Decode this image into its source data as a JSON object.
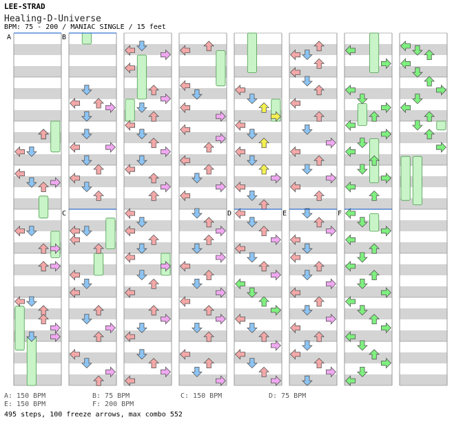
{
  "header": {
    "artist": "LEE-STRAD",
    "title": "Healing-D-Universe",
    "info": "BPM: 75 - 200 / MANIAC SINGLE / 15 feet"
  },
  "sections": [
    {
      "letter": "A",
      "column": 0,
      "beat": 0
    },
    {
      "letter": "B",
      "column": 1,
      "beat": 0
    },
    {
      "letter": "C",
      "column": 1,
      "beat": 4
    },
    {
      "letter": "D",
      "column": 4,
      "beat": 4
    },
    {
      "letter": "E",
      "column": 5,
      "beat": 4
    },
    {
      "letter": "F",
      "column": 6,
      "beat": 4
    }
  ],
  "bpm_list": [
    {
      "text": "A: 150 BPM"
    },
    {
      "text": "B: 75 BPM"
    },
    {
      "text": "C: 150 BPM"
    },
    {
      "text": "D: 75 BPM"
    },
    {
      "text": "E: 150 BPM"
    },
    {
      "text": "F: 200 BPM"
    }
  ],
  "summary": "495 steps, 100 freeze arrows, max combo 552",
  "colors": {
    "left": "#f4a8a8",
    "down": "#8cc4f4",
    "up": "#f4a8a8",
    "right": "#f0a8f0",
    "yellow": "#f4f050",
    "green": "#7ef07e",
    "freeze": "#c8f4c8",
    "stripe": "#d4d4d4",
    "outline": "#000000"
  },
  "freezes": [
    {
      "column": 0,
      "lane": 0,
      "start": 6.2,
      "end": 7.2
    },
    {
      "column": 0,
      "lane": 2,
      "start": 3.7,
      "end": 4.2
    },
    {
      "column": 0,
      "lane": 3,
      "start": 2.0,
      "end": 2.7
    },
    {
      "column": 0,
      "lane": 3,
      "start": 4.5,
      "end": 5.1
    },
    {
      "column": 0,
      "lane": 1,
      "start": 6.9,
      "end": 8.0
    },
    {
      "column": 1,
      "lane": 1,
      "start": 0.0,
      "end": 0.25
    },
    {
      "column": 1,
      "lane": 3,
      "start": 4.2,
      "end": 4.9
    },
    {
      "column": 1,
      "lane": 2,
      "start": 5.0,
      "end": 5.5
    },
    {
      "column": 2,
      "lane": 1,
      "start": 0.5,
      "end": 1.5
    },
    {
      "column": 2,
      "lane": 0,
      "start": 1.5,
      "end": 2.0
    },
    {
      "column": 2,
      "lane": 3,
      "start": 5.0,
      "end": 5.5
    },
    {
      "column": 3,
      "lane": 3,
      "start": 0.4,
      "end": 1.2
    },
    {
      "column": 4,
      "lane": 1,
      "start": 0.0,
      "end": 0.9
    },
    {
      "column": 4,
      "lane": 3,
      "start": 1.5,
      "end": 2.0
    },
    {
      "column": 6,
      "lane": 2,
      "start": 0.0,
      "end": 0.9
    },
    {
      "column": 6,
      "lane": 1,
      "start": 1.6,
      "end": 2.1
    },
    {
      "column": 6,
      "lane": 2,
      "start": 2.4,
      "end": 3.4
    },
    {
      "column": 6,
      "lane": 2,
      "start": 4.1,
      "end": 4.5
    },
    {
      "column": 7,
      "lane": 0,
      "start": 2.8,
      "end": 3.8
    },
    {
      "column": 7,
      "lane": 1,
      "start": 2.8,
      "end": 3.9
    },
    {
      "column": 7,
      "lane": 3,
      "start": 2.0,
      "end": 2.2
    }
  ],
  "arrows": [
    [
      0,
      2.2,
      2,
      "r"
    ],
    [
      0,
      2.2,
      2,
      "r"
    ],
    [
      0,
      2.6,
      0,
      "r"
    ],
    [
      0,
      2.6,
      1,
      "r"
    ],
    [
      0,
      3.1,
      0,
      "r"
    ],
    [
      0,
      3.3,
      1,
      "r"
    ],
    [
      0,
      3.3,
      3,
      "r"
    ],
    [
      0,
      3.4,
      2,
      "r"
    ],
    [
      0,
      4.4,
      0,
      "r"
    ],
    [
      0,
      4.4,
      1,
      "r"
    ],
    [
      0,
      4.8,
      2,
      "r"
    ],
    [
      0,
      4.8,
      3,
      "r"
    ],
    [
      0,
      5.2,
      2,
      "r"
    ],
    [
      0,
      5.2,
      3,
      "r"
    ],
    [
      0,
      6.0,
      0,
      "r"
    ],
    [
      0,
      6.0,
      1,
      "r"
    ],
    [
      0,
      6.2,
      2,
      "r"
    ],
    [
      0,
      6.4,
      2,
      "r"
    ],
    [
      0,
      6.6,
      3,
      "r"
    ],
    [
      0,
      6.8,
      1,
      "r"
    ],
    [
      0,
      6.8,
      3,
      "r"
    ],
    [
      1,
      1.2,
      1,
      "r"
    ],
    [
      1,
      1.5,
      0,
      "r"
    ],
    [
      1,
      1.5,
      2,
      "r"
    ],
    [
      1,
      1.6,
      3,
      "r"
    ],
    [
      1,
      1.8,
      1,
      "r"
    ],
    [
      1,
      2.2,
      1,
      "r"
    ],
    [
      1,
      2.5,
      0,
      "r"
    ],
    [
      1,
      2.5,
      3,
      "r"
    ],
    [
      1,
      2.8,
      1,
      "r"
    ],
    [
      1,
      3.0,
      2,
      "r"
    ],
    [
      1,
      3.2,
      0,
      "r"
    ],
    [
      1,
      3.4,
      1,
      "r"
    ],
    [
      1,
      3.6,
      2,
      "r"
    ],
    [
      1,
      4.4,
      0,
      "r"
    ],
    [
      1,
      4.4,
      1,
      "r"
    ],
    [
      1,
      4.6,
      0,
      "r"
    ],
    [
      1,
      4.8,
      2,
      "r"
    ],
    [
      1,
      5.4,
      0,
      "r"
    ],
    [
      1,
      5.6,
      1,
      "r"
    ],
    [
      1,
      5.8,
      0,
      "r"
    ],
    [
      1,
      6.2,
      2,
      "r"
    ],
    [
      1,
      6.4,
      1,
      "r"
    ],
    [
      1,
      6.6,
      3,
      "r"
    ],
    [
      1,
      6.8,
      2,
      "r"
    ],
    [
      1,
      7.2,
      0,
      "r"
    ],
    [
      1,
      7.4,
      1,
      "r"
    ],
    [
      1,
      7.6,
      3,
      "r"
    ],
    [
      1,
      7.8,
      2,
      "r"
    ],
    [
      2,
      0.2,
      1,
      "r"
    ],
    [
      2,
      0.3,
      0,
      "r"
    ],
    [
      2,
      0.4,
      3,
      "r"
    ],
    [
      2,
      0.7,
      0,
      "r"
    ],
    [
      2,
      1.2,
      2,
      "r"
    ],
    [
      2,
      1.4,
      3,
      "r"
    ],
    [
      2,
      1.6,
      1,
      "r"
    ],
    [
      2,
      1.8,
      2,
      "r"
    ],
    [
      2,
      2.0,
      0,
      "r"
    ],
    [
      2,
      2.2,
      1,
      "r"
    ],
    [
      2,
      2.4,
      2,
      "r"
    ],
    [
      2,
      2.6,
      3,
      "r"
    ],
    [
      2,
      2.8,
      1,
      "r"
    ],
    [
      2,
      3.0,
      0,
      "r"
    ],
    [
      2,
      3.2,
      2,
      "r"
    ],
    [
      2,
      3.4,
      3,
      "r"
    ],
    [
      2,
      3.6,
      2,
      "r"
    ],
    [
      2,
      4.0,
      0,
      "r"
    ],
    [
      2,
      4.2,
      1,
      "r"
    ],
    [
      2,
      4.4,
      0,
      "r"
    ],
    [
      2,
      4.6,
      2,
      "r"
    ],
    [
      2,
      4.8,
      1,
      "r"
    ],
    [
      2,
      5.0,
      0,
      "r"
    ],
    [
      2,
      5.2,
      3,
      "r"
    ],
    [
      2,
      5.4,
      1,
      "r"
    ],
    [
      2,
      5.6,
      2,
      "r"
    ],
    [
      2,
      5.8,
      0,
      "r"
    ],
    [
      2,
      6.2,
      2,
      "r"
    ],
    [
      2,
      6.4,
      3,
      "r"
    ],
    [
      2,
      6.6,
      1,
      "r"
    ],
    [
      2,
      6.8,
      0,
      "r"
    ],
    [
      2,
      7.2,
      1,
      "r"
    ],
    [
      2,
      7.4,
      2,
      "r"
    ],
    [
      2,
      7.6,
      3,
      "r"
    ],
    [
      2,
      7.8,
      0,
      "r"
    ],
    [
      3,
      0.3,
      0,
      "r"
    ],
    [
      3,
      0.2,
      2,
      "r"
    ],
    [
      3,
      1.1,
      0,
      "r"
    ],
    [
      3,
      1.3,
      1,
      "r"
    ],
    [
      3,
      1.6,
      0,
      "r"
    ],
    [
      3,
      1.8,
      3,
      "r"
    ],
    [
      3,
      2.1,
      0,
      "r"
    ],
    [
      3,
      2.3,
      3,
      "r"
    ],
    [
      3,
      2.5,
      2,
      "r"
    ],
    [
      3,
      2.8,
      0,
      "r"
    ],
    [
      3,
      3.0,
      2,
      "r"
    ],
    [
      3,
      3.2,
      1,
      "r"
    ],
    [
      3,
      3.4,
      3,
      "r"
    ],
    [
      3,
      3.6,
      0,
      "r"
    ],
    [
      3,
      4.0,
      1,
      "r"
    ],
    [
      3,
      4.2,
      2,
      "r"
    ],
    [
      3,
      4.4,
      3,
      "r"
    ],
    [
      3,
      4.6,
      2,
      "r"
    ],
    [
      3,
      4.8,
      1,
      "r"
    ],
    [
      3,
      5.0,
      3,
      "r"
    ],
    [
      3,
      5.2,
      0,
      "r"
    ],
    [
      3,
      5.4,
      2,
      "r"
    ],
    [
      3,
      5.6,
      1,
      "r"
    ],
    [
      3,
      5.8,
      3,
      "r"
    ],
    [
      3,
      6.0,
      0,
      "r"
    ],
    [
      3,
      6.2,
      2,
      "r"
    ],
    [
      3,
      6.4,
      3,
      "r"
    ],
    [
      3,
      6.6,
      1,
      "r"
    ],
    [
      3,
      6.8,
      2,
      "r"
    ],
    [
      3,
      7.2,
      0,
      "r"
    ],
    [
      3,
      7.4,
      2,
      "r"
    ],
    [
      3,
      7.6,
      1,
      "r"
    ],
    [
      3,
      7.8,
      3,
      "r"
    ],
    [
      4,
      1.2,
      0,
      "r"
    ],
    [
      4,
      1.4,
      1,
      "r"
    ],
    [
      4,
      1.6,
      2,
      "r"
    ],
    [
      4,
      1.8,
      3,
      "r"
    ],
    [
      4,
      2.0,
      0,
      "r"
    ],
    [
      4,
      2.2,
      1,
      "r"
    ],
    [
      4,
      2.4,
      2,
      "r"
    ],
    [
      4,
      2.6,
      0,
      "r"
    ],
    [
      4,
      2.8,
      1,
      "r"
    ],
    [
      4,
      3.0,
      2,
      "r"
    ],
    [
      4,
      3.2,
      3,
      "r"
    ],
    [
      4,
      3.4,
      0,
      "r"
    ],
    [
      4,
      3.6,
      1,
      "r"
    ],
    [
      4,
      3.8,
      2,
      "r"
    ],
    [
      4,
      4.0,
      0,
      "r"
    ],
    [
      4,
      4.2,
      1,
      "r"
    ],
    [
      4,
      4.4,
      2,
      "r"
    ],
    [
      4,
      4.6,
      3,
      "r"
    ],
    [
      4,
      4.8,
      0,
      "r"
    ],
    [
      4,
      5.0,
      1,
      "r"
    ],
    [
      4,
      5.2,
      2,
      "r"
    ],
    [
      4,
      5.4,
      3,
      "r"
    ],
    [
      4,
      5.6,
      0,
      "r"
    ],
    [
      4,
      5.8,
      1,
      "r"
    ],
    [
      4,
      6.0,
      2,
      "r"
    ],
    [
      4,
      6.2,
      3,
      "r"
    ],
    [
      4,
      6.4,
      0,
      "r"
    ],
    [
      4,
      6.6,
      1,
      "r"
    ],
    [
      4,
      6.8,
      2,
      "r"
    ],
    [
      4,
      7.0,
      3,
      "r"
    ],
    [
      4,
      7.2,
      0,
      "r"
    ],
    [
      4,
      7.4,
      1,
      "r"
    ],
    [
      4,
      7.6,
      2,
      "r"
    ],
    [
      4,
      7.8,
      3,
      "r"
    ],
    [
      5,
      0.2,
      2,
      "r"
    ],
    [
      5,
      0.4,
      0,
      "r"
    ],
    [
      5,
      0.4,
      1,
      "r"
    ],
    [
      5,
      0.6,
      2,
      "r"
    ],
    [
      5,
      0.8,
      0,
      "r"
    ],
    [
      5,
      1.0,
      1,
      "r"
    ],
    [
      5,
      1.2,
      2,
      "r"
    ],
    [
      5,
      1.5,
      0,
      "r"
    ],
    [
      5,
      1.8,
      2,
      "r"
    ],
    [
      5,
      2.1,
      1,
      "r"
    ],
    [
      5,
      2.4,
      3,
      "r"
    ],
    [
      5,
      2.6,
      0,
      "r"
    ],
    [
      5,
      2.8,
      2,
      "r"
    ],
    [
      5,
      3.0,
      1,
      "r"
    ],
    [
      5,
      3.2,
      3,
      "r"
    ],
    [
      5,
      3.4,
      0,
      "r"
    ],
    [
      5,
      3.6,
      2,
      "r"
    ],
    [
      5,
      4.0,
      1,
      "r"
    ],
    [
      5,
      4.2,
      2,
      "r"
    ],
    [
      5,
      4.4,
      3,
      "r"
    ],
    [
      5,
      4.6,
      0,
      "r"
    ],
    [
      5,
      4.8,
      1,
      "r"
    ],
    [
      5,
      5.0,
      0,
      "r"
    ],
    [
      5,
      5.2,
      2,
      "r"
    ],
    [
      5,
      5.4,
      1,
      "r"
    ],
    [
      5,
      5.6,
      3,
      "r"
    ],
    [
      5,
      5.8,
      0,
      "r"
    ],
    [
      5,
      6.0,
      2,
      "r"
    ],
    [
      5,
      6.2,
      1,
      "r"
    ],
    [
      5,
      6.4,
      3,
      "r"
    ],
    [
      5,
      6.6,
      0,
      "r"
    ],
    [
      5,
      6.8,
      2,
      "r"
    ],
    [
      5,
      7.0,
      1,
      "r"
    ],
    [
      5,
      7.2,
      0,
      "r"
    ],
    [
      5,
      7.4,
      2,
      "r"
    ],
    [
      5,
      7.6,
      3,
      "r"
    ],
    [
      5,
      7.8,
      1,
      "r"
    ],
    [
      6,
      0.3,
      0,
      "r"
    ],
    [
      6,
      0.6,
      3,
      "r"
    ],
    [
      6,
      1.2,
      0,
      "r"
    ],
    [
      6,
      1.4,
      1,
      "r"
    ],
    [
      6,
      1.6,
      3,
      "r"
    ],
    [
      6,
      1.8,
      2,
      "r"
    ],
    [
      6,
      2.0,
      0,
      "r"
    ],
    [
      6,
      2.2,
      3,
      "r"
    ],
    [
      6,
      2.4,
      1,
      "r"
    ],
    [
      6,
      2.6,
      0,
      "r"
    ],
    [
      6,
      2.8,
      2,
      "r"
    ],
    [
      6,
      3.0,
      1,
      "r"
    ],
    [
      6,
      3.2,
      3,
      "r"
    ],
    [
      6,
      3.4,
      0,
      "r"
    ],
    [
      6,
      3.6,
      2,
      "r"
    ],
    [
      6,
      4.0,
      0,
      "r"
    ],
    [
      6,
      4.2,
      1,
      "r"
    ],
    [
      6,
      4.4,
      3,
      "r"
    ],
    [
      6,
      4.6,
      0,
      "r"
    ],
    [
      6,
      4.8,
      2,
      "r"
    ],
    [
      6,
      5.0,
      1,
      "r"
    ],
    [
      6,
      5.2,
      0,
      "r"
    ],
    [
      6,
      5.4,
      2,
      "r"
    ],
    [
      6,
      5.6,
      1,
      "r"
    ],
    [
      6,
      5.8,
      3,
      "r"
    ],
    [
      6,
      6.0,
      0,
      "r"
    ],
    [
      6,
      6.2,
      1,
      "r"
    ],
    [
      6,
      6.4,
      2,
      "r"
    ],
    [
      6,
      6.6,
      3,
      "r"
    ],
    [
      6,
      6.8,
      0,
      "r"
    ],
    [
      6,
      7.0,
      1,
      "r"
    ],
    [
      6,
      7.2,
      2,
      "r"
    ],
    [
      6,
      7.4,
      3,
      "r"
    ],
    [
      6,
      7.6,
      1,
      "r"
    ],
    [
      6,
      7.8,
      0,
      "r"
    ],
    [
      7,
      0.2,
      0,
      "r"
    ],
    [
      7,
      0.3,
      1,
      "r"
    ],
    [
      7,
      0.4,
      2,
      "r"
    ],
    [
      7,
      0.6,
      0,
      "r"
    ],
    [
      7,
      0.8,
      1,
      "r"
    ],
    [
      7,
      1.0,
      2,
      "r"
    ],
    [
      7,
      1.2,
      3,
      "r"
    ],
    [
      7,
      1.4,
      1,
      "r"
    ],
    [
      7,
      1.6,
      0,
      "r"
    ],
    [
      7,
      1.8,
      2,
      "r"
    ],
    [
      7,
      2.0,
      1,
      "r"
    ],
    [
      7,
      2.2,
      2,
      "r"
    ],
    [
      7,
      2.5,
      3,
      "r"
    ]
  ]
}
